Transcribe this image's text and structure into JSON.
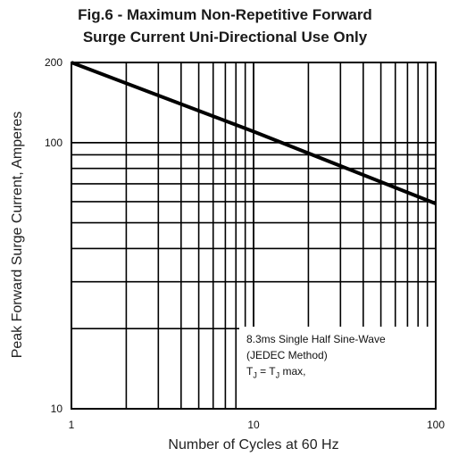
{
  "chart_data": {
    "type": "line",
    "title": "Fig.6 - Maximum Non-Repetitive  Forward",
    "subtitle": "Surge Current Uni-Directional Use Only",
    "xlabel": "Number of Cycles at 60 Hz",
    "ylabel": "Peak Forward Surge Current, Amperes",
    "x_scale": "log",
    "y_scale": "log",
    "xlim": [
      1,
      100
    ],
    "ylim": [
      10,
      200
    ],
    "x_ticks": [
      "1",
      "10",
      "100"
    ],
    "y_ticks": [
      "10",
      "100",
      "200"
    ],
    "grid": true,
    "series": [
      {
        "x": [
          1,
          10,
          100
        ],
        "y": [
          200,
          110,
          59
        ],
        "color": "#000000"
      }
    ],
    "annotation": {
      "line1": "8.3ms Single Half Sine-Wave",
      "line2": "(JEDEC Method)",
      "line3": "T",
      "line3_sub": "J",
      "line3_mid": " = T",
      "line3_sub2": "J",
      "line3_end": " max,"
    }
  }
}
